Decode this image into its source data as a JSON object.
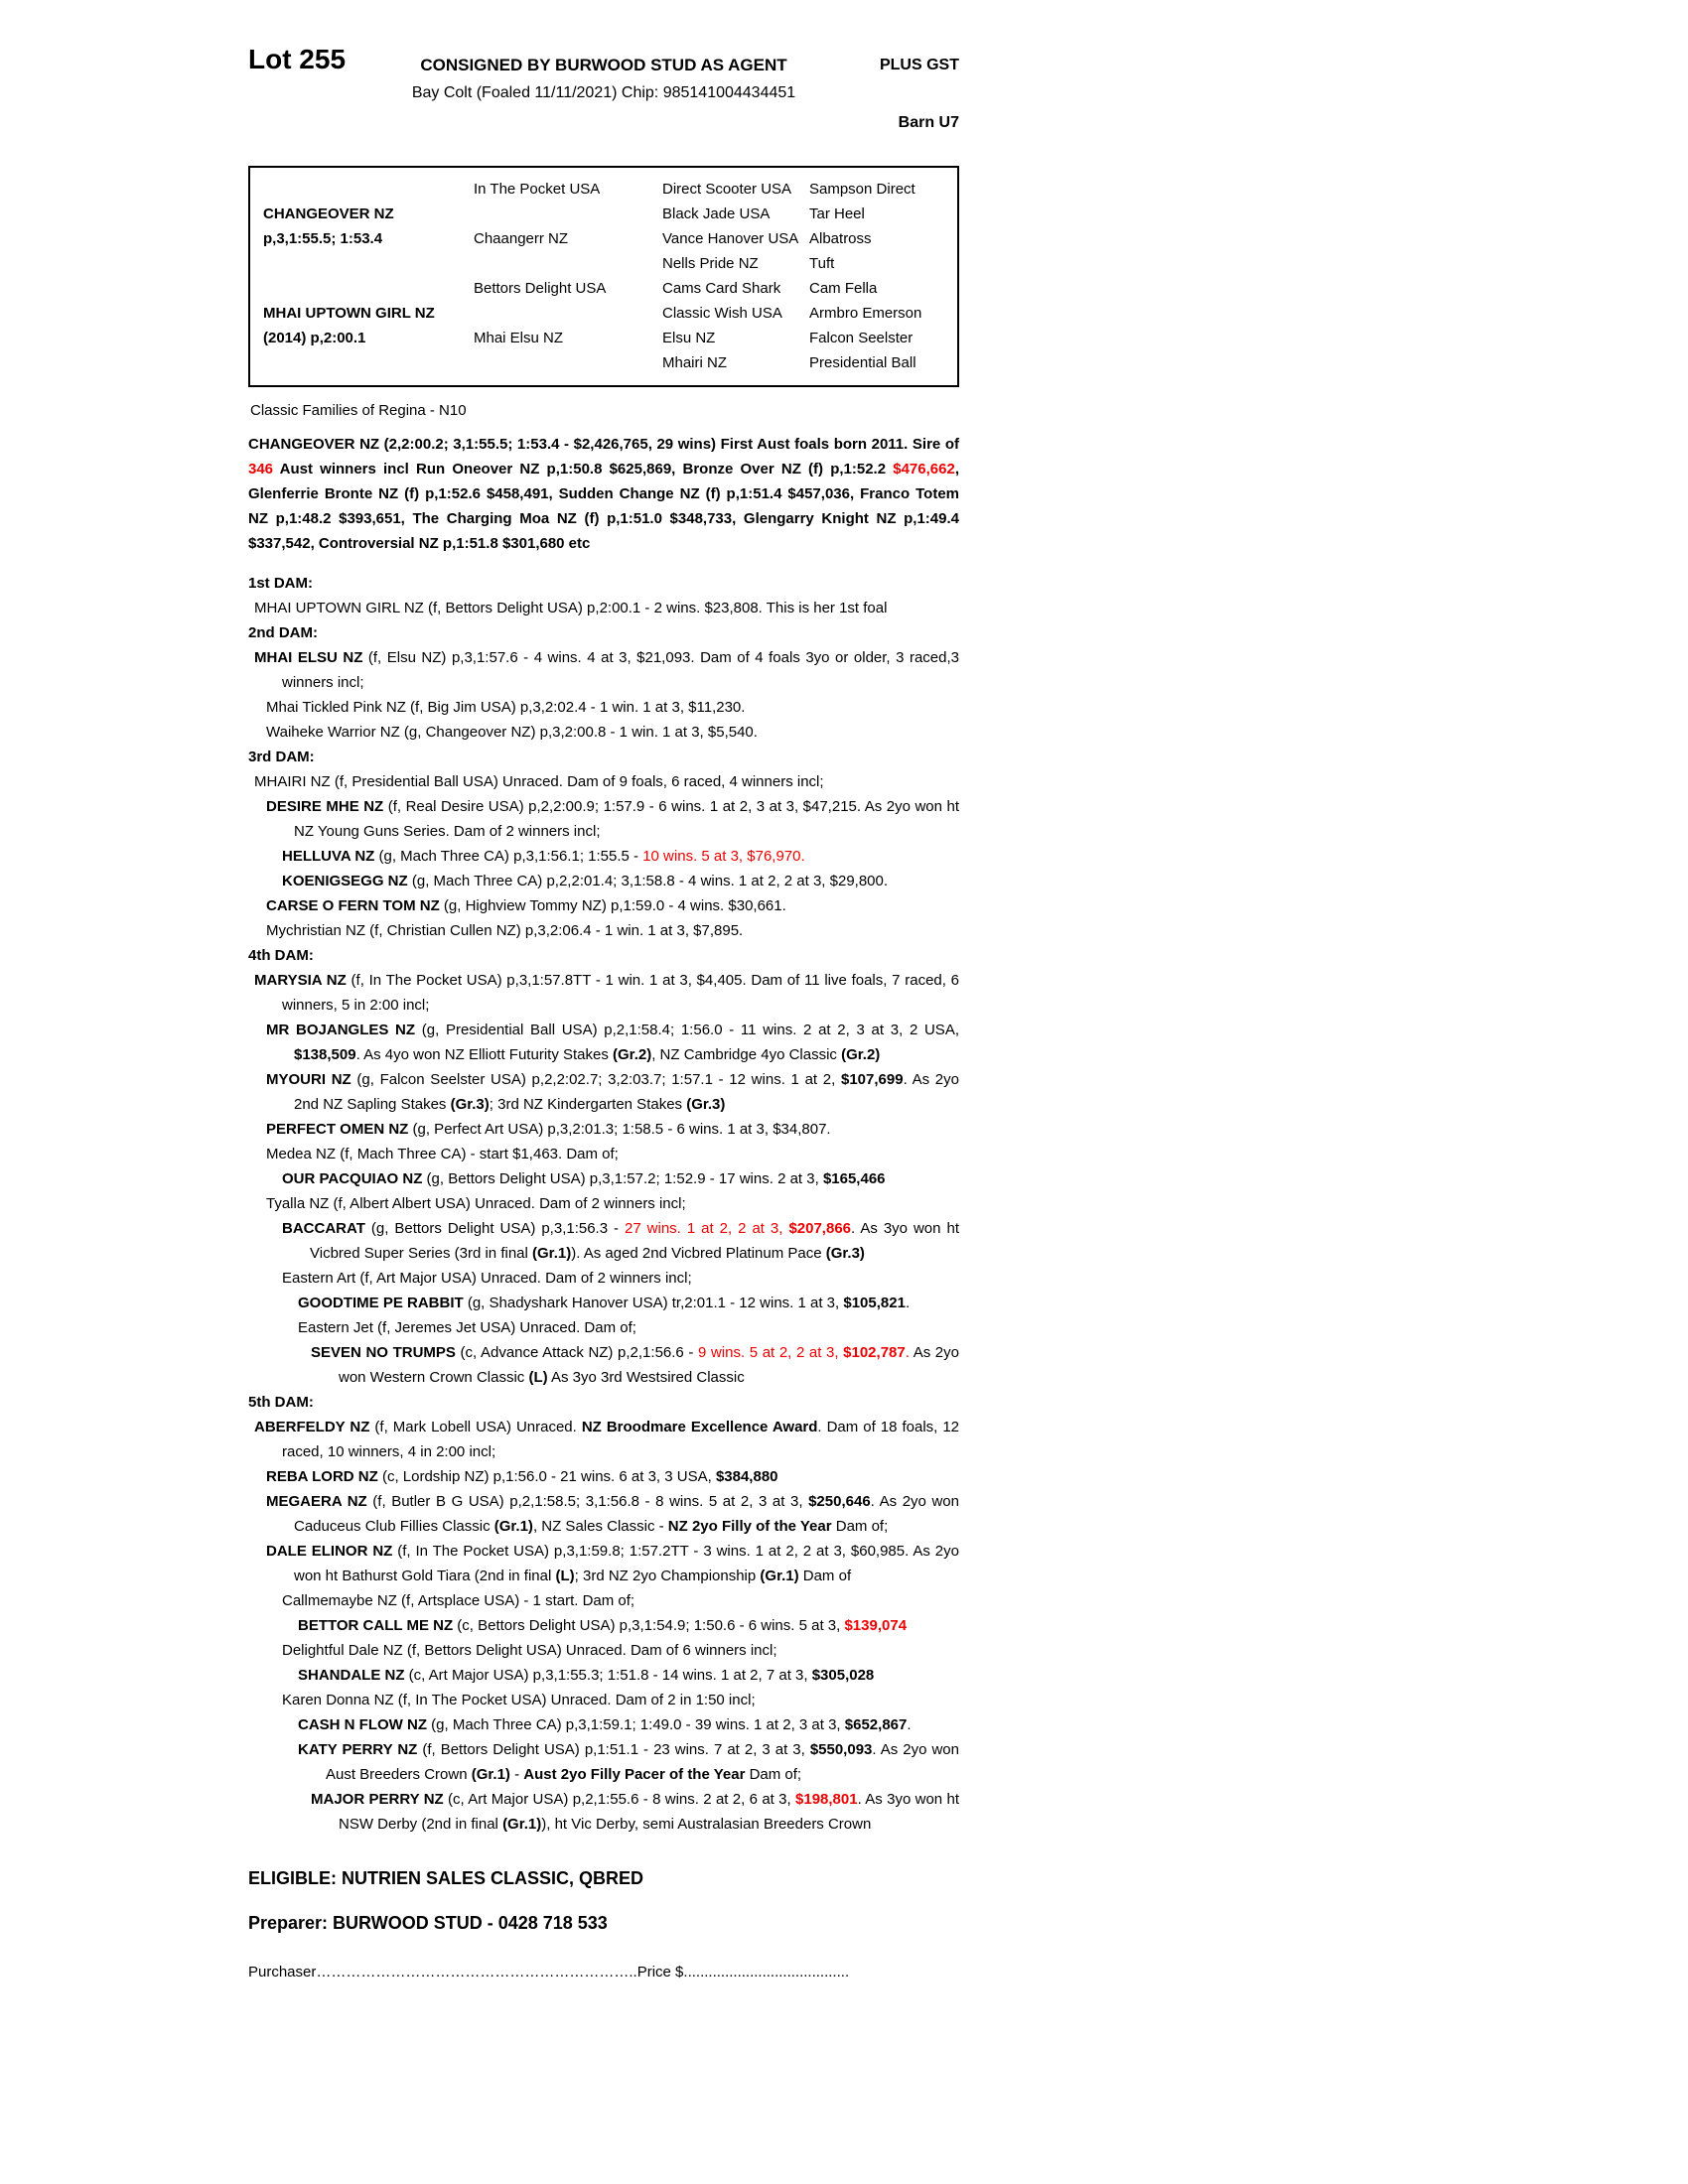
{
  "colors": {
    "red": "#ee0000"
  },
  "header": {
    "lot": "Lot 255",
    "consignor": "CONSIGNED BY BURWOOD STUD AS AGENT",
    "gst": "PLUS GST",
    "description": "Bay Colt (Foaled 11/11/2021) Chip: 985141004434451",
    "barn": "Barn U7"
  },
  "pedigree": {
    "col1": [
      {
        "name": "CHANGEOVER NZ",
        "record": "p,3,1:55.5; 1:53.4"
      },
      {
        "name": "MHAI UPTOWN GIRL NZ",
        "record": "(2014) p,2:00.1"
      }
    ],
    "col2": [
      "In The Pocket USA",
      "Chaangerr NZ",
      "Bettors Delight USA",
      "Mhai Elsu NZ"
    ],
    "col3": [
      "Direct Scooter USA",
      "Black Jade USA",
      "Vance Hanover USA",
      "Nells Pride NZ",
      "Cams Card Shark",
      "Classic Wish USA",
      "Elsu NZ",
      "Mhairi NZ"
    ],
    "col4": [
      "Sampson Direct",
      "Tar Heel",
      "Albatross",
      "Tuft",
      "Cam Fella",
      "Armbro Emerson",
      "Falcon Seelster",
      "Presidential Ball"
    ]
  },
  "family_line": "Classic Families of Regina - N10",
  "sire_paragraph": [
    {
      "t": "CHANGEOVER NZ (2,2:00.2; 3,1:55.5; 1:53.4 - $2,426,765, 29 wins) First Aust foals born 2011. Sire of "
    },
    {
      "t": "346",
      "r": true
    },
    {
      "t": " Aust winners incl Run Oneover NZ p,1:50.8 $625,869, Bronze Over NZ (f) p,1:52.2 "
    },
    {
      "t": "$476,662",
      "r": true
    },
    {
      "t": ", Glenferrie Bronte NZ (f) p,1:52.6 $458,491, Sudden Change NZ (f) p,1:51.4 $457,036, Franco Totem NZ p,1:48.2 $393,651, The Charging Moa NZ (f) p,1:51.0 $348,733, Glengarry Knight NZ p,1:49.4 $337,542, Controversial NZ p,1:51.8 $301,680 etc"
    }
  ],
  "dams": [
    {
      "heading": "1st DAM:",
      "entries": [
        {
          "level": 0,
          "segments": [
            {
              "t": "MHAI UPTOWN GIRL NZ (f, Bettors Delight USA) p,2:00.1 - 2 wins. $23,808. This is her 1st foal"
            }
          ]
        }
      ]
    },
    {
      "heading": "2nd DAM:",
      "entries": [
        {
          "level": 0,
          "segments": [
            {
              "t": "MHAI ELSU NZ",
              "b": true
            },
            {
              "t": " (f, Elsu NZ) p,3,1:57.6 - 4 wins. 4 at 3, $21,093. Dam of 4 foals 3yo or older, 3 raced,3 winners incl;"
            }
          ]
        },
        {
          "level": 1,
          "segments": [
            {
              "t": "Mhai Tickled Pink NZ (f, Big Jim USA) p,3,2:02.4 - 1 win. 1 at 3, $11,230."
            }
          ]
        },
        {
          "level": 1,
          "segments": [
            {
              "t": "Waiheke Warrior NZ (g, Changeover NZ) p,3,2:00.8 - 1 win. 1 at 3, $5,540."
            }
          ]
        }
      ]
    },
    {
      "heading": "3rd DAM:",
      "entries": [
        {
          "level": 0,
          "segments": [
            {
              "t": "MHAIRI NZ (f, Presidential Ball USA) Unraced. Dam of 9 foals, 6 raced, 4 winners incl;"
            }
          ]
        },
        {
          "level": 1,
          "segments": [
            {
              "t": "DESIRE MHE NZ",
              "b": true
            },
            {
              "t": " (f, Real Desire USA) p,2,2:00.9; 1:57.9 - 6 wins. 1 at 2, 3 at 3, $47,215. As 2yo won ht NZ Young Guns Series. Dam of 2 winners incl;"
            }
          ]
        },
        {
          "level": 2,
          "segments": [
            {
              "t": "HELLUVA NZ",
              "b": true
            },
            {
              "t": " (g, Mach Three CA) p,3,1:56.1; 1:55.5 - "
            },
            {
              "t": "10 wins. 5 at 3, $76,970.",
              "r": true
            }
          ]
        },
        {
          "level": 2,
          "segments": [
            {
              "t": "KOENIGSEGG NZ",
              "b": true
            },
            {
              "t": " (g, Mach Three CA) p,2,2:01.4; 3,1:58.8 - 4 wins. 1 at 2, 2 at 3, $29,800."
            }
          ]
        },
        {
          "level": 1,
          "segments": [
            {
              "t": "CARSE O FERN TOM NZ",
              "b": true
            },
            {
              "t": " (g, Highview Tommy NZ) p,1:59.0 - 4 wins. $30,661."
            }
          ]
        },
        {
          "level": 1,
          "segments": [
            {
              "t": "Mychristian NZ (f, Christian Cullen NZ) p,3,2:06.4 - 1 win. 1 at 3, $7,895."
            }
          ]
        }
      ]
    },
    {
      "heading": "4th DAM:",
      "entries": [
        {
          "level": 0,
          "segments": [
            {
              "t": "MARYSIA NZ",
              "b": true
            },
            {
              "t": " (f, In The Pocket USA) p,3,1:57.8TT - 1 win. 1 at 3, $4,405. Dam of 11 live foals, 7 raced, 6 winners, 5 in 2:00 incl;"
            }
          ]
        },
        {
          "level": 1,
          "segments": [
            {
              "t": "MR BOJANGLES NZ",
              "b": true
            },
            {
              "t": " (g, Presidential Ball USA) p,2,1:58.4; 1:56.0 - 11 wins. 2 at 2, 3 at 3, 2 USA, "
            },
            {
              "t": "$138,509",
              "b": true
            },
            {
              "t": ". As 4yo won NZ Elliott Futurity Stakes "
            },
            {
              "t": "(Gr.2)",
              "b": true
            },
            {
              "t": ", NZ Cambridge 4yo Classic "
            },
            {
              "t": "(Gr.2)",
              "b": true
            }
          ]
        },
        {
          "level": 1,
          "segments": [
            {
              "t": "MYOURI NZ",
              "b": true
            },
            {
              "t": " (g, Falcon Seelster USA) p,2,2:02.7; 3,2:03.7; 1:57.1 - 12 wins. 1 at 2, "
            },
            {
              "t": "$107,699",
              "b": true
            },
            {
              "t": ". As 2yo 2nd NZ Sapling Stakes "
            },
            {
              "t": "(Gr.3)",
              "b": true
            },
            {
              "t": "; 3rd NZ Kindergarten Stakes "
            },
            {
              "t": "(Gr.3)",
              "b": true
            }
          ]
        },
        {
          "level": 1,
          "segments": [
            {
              "t": "PERFECT OMEN NZ",
              "b": true
            },
            {
              "t": " (g, Perfect Art USA) p,3,2:01.3; 1:58.5 - 6 wins. 1 at 3, $34,807."
            }
          ]
        },
        {
          "level": 1,
          "segments": [
            {
              "t": "Medea NZ (f, Mach Three CA) - start $1,463. Dam of;"
            }
          ]
        },
        {
          "level": 2,
          "segments": [
            {
              "t": "OUR PACQUIAO NZ",
              "b": true
            },
            {
              "t": " (g, Bettors Delight USA) p,3,1:57.2; 1:52.9 - 17 wins. 2 at 3, "
            },
            {
              "t": "$165,466",
              "b": true
            }
          ]
        },
        {
          "level": 1,
          "segments": [
            {
              "t": "Tyalla NZ (f, Albert Albert USA) Unraced. Dam of 2 winners incl;"
            }
          ]
        },
        {
          "level": 2,
          "segments": [
            {
              "t": "BACCARAT",
              "b": true
            },
            {
              "t": " (g, Bettors Delight USA) p,3,1:56.3 - "
            },
            {
              "t": "27 wins. 1 at 2, 2 at 3, ",
              "r": true
            },
            {
              "t": "$207,866",
              "b": true,
              "r": true
            },
            {
              "t": ". As 3yo won ht Vicbred Super Series (3rd in final "
            },
            {
              "t": "(Gr.1)",
              "b": true
            },
            {
              "t": "). As aged 2nd Vicbred Platinum Pace "
            },
            {
              "t": "(Gr.3)",
              "b": true
            }
          ]
        },
        {
          "level": 2,
          "segments": [
            {
              "t": "Eastern Art (f, Art Major USA) Unraced. Dam of 2 winners incl;"
            }
          ]
        },
        {
          "level": 3,
          "segments": [
            {
              "t": "GOODTIME PE RABBIT",
              "b": true
            },
            {
              "t": " (g, Shadyshark Hanover USA) tr,2:01.1 - 12 wins. 1 at 3, "
            },
            {
              "t": "$105,821",
              "b": true
            },
            {
              "t": "."
            }
          ]
        },
        {
          "level": 3,
          "segments": [
            {
              "t": "Eastern Jet (f, Jeremes Jet USA) Unraced. Dam of;"
            }
          ]
        },
        {
          "level": 4,
          "segments": [
            {
              "t": "SEVEN NO TRUMPS",
              "b": true
            },
            {
              "t": " (c, Advance Attack NZ) p,2,1:56.6 - "
            },
            {
              "t": "9 wins. 5 at 2, 2 at 3, ",
              "r": true
            },
            {
              "t": "$102,787",
              "b": true,
              "r": true
            },
            {
              "t": ". ",
              "r": true
            },
            {
              "t": "As 2yo won Western Crown Classic "
            },
            {
              "t": "(L)",
              "b": true
            },
            {
              "t": " As 3yo 3rd Westsired Classic"
            }
          ]
        }
      ]
    },
    {
      "heading": "5th DAM:",
      "entries": [
        {
          "level": 0,
          "segments": [
            {
              "t": "ABERFELDY NZ",
              "b": true
            },
            {
              "t": " (f, Mark Lobell USA) Unraced. "
            },
            {
              "t": "NZ Broodmare Excellence Award",
              "b": true
            },
            {
              "t": ". Dam of 18 foals, 12 raced, 10 winners, 4 in 2:00 incl;"
            }
          ]
        },
        {
          "level": 1,
          "segments": [
            {
              "t": "REBA LORD NZ",
              "b": true
            },
            {
              "t": " (c, Lordship NZ) p,1:56.0 - 21 wins. 6 at 3, 3 USA, "
            },
            {
              "t": "$384,880",
              "b": true
            }
          ]
        },
        {
          "level": 1,
          "segments": [
            {
              "t": "MEGAERA NZ",
              "b": true
            },
            {
              "t": " (f, Butler B G USA) p,2,1:58.5; 3,1:56.8 - 8 wins. 5 at 2, 3 at 3, "
            },
            {
              "t": "$250,646",
              "b": true
            },
            {
              "t": ". As 2yo won Caduceus Club Fillies Classic "
            },
            {
              "t": "(Gr.1)",
              "b": true
            },
            {
              "t": ", NZ Sales Classic - "
            },
            {
              "t": "NZ 2yo Filly of the Year",
              "b": true
            },
            {
              "t": " Dam of;"
            }
          ]
        },
        {
          "level": 1,
          "segments": [
            {
              "t": "DALE ELINOR NZ",
              "b": true
            },
            {
              "t": " (f, In The Pocket USA) p,3,1:59.8; 1:57.2TT - 3 wins. 1 at 2, 2 at 3, $60,985. As 2yo won ht Bathurst Gold Tiara (2nd in final "
            },
            {
              "t": "(L)",
              "b": true
            },
            {
              "t": "; 3rd NZ 2yo Championship "
            },
            {
              "t": "(Gr.1)",
              "b": true
            },
            {
              "t": " Dam of"
            }
          ]
        },
        {
          "level": 2,
          "segments": [
            {
              "t": "Callmemaybe NZ (f, Artsplace USA) - 1 start. Dam of;"
            }
          ]
        },
        {
          "level": 3,
          "segments": [
            {
              "t": "BETTOR CALL ME NZ",
              "b": true
            },
            {
              "t": " (c, Bettors Delight USA) p,3,1:54.9; 1:50.6 - 6 wins. 5 at 3, "
            },
            {
              "t": "$139,074",
              "b": true,
              "r": true
            }
          ]
        },
        {
          "level": 2,
          "segments": [
            {
              "t": "Delightful Dale NZ (f, Bettors Delight USA) Unraced. Dam of 6 winners incl;"
            }
          ]
        },
        {
          "level": 3,
          "segments": [
            {
              "t": "SHANDALE NZ",
              "b": true
            },
            {
              "t": " (c, Art Major USA) p,3,1:55.3; 1:51.8 - 14 wins. 1 at 2, 7 at 3, "
            },
            {
              "t": "$305,028",
              "b": true
            }
          ]
        },
        {
          "level": 2,
          "segments": [
            {
              "t": "Karen Donna NZ (f, In The Pocket USA) Unraced. Dam of 2 in 1:50 incl;"
            }
          ]
        },
        {
          "level": 3,
          "segments": [
            {
              "t": "CASH N FLOW NZ",
              "b": true
            },
            {
              "t": " (g, Mach Three CA) p,3,1:59.1; 1:49.0 - 39 wins. 1 at 2, 3 at 3, "
            },
            {
              "t": "$652,867",
              "b": true
            },
            {
              "t": "."
            }
          ]
        },
        {
          "level": 3,
          "segments": [
            {
              "t": "KATY PERRY NZ",
              "b": true
            },
            {
              "t": " (f, Bettors Delight USA) p,1:51.1 - 23 wins. 7 at 2, 3 at 3, "
            },
            {
              "t": "$550,093",
              "b": true
            },
            {
              "t": ". As 2yo won Aust Breeders Crown "
            },
            {
              "t": "(Gr.1)",
              "b": true
            },
            {
              "t": " - "
            },
            {
              "t": "Aust 2yo Filly Pacer of the Year",
              "b": true
            },
            {
              "t": " Dam of;"
            }
          ]
        },
        {
          "level": 4,
          "segments": [
            {
              "t": "MAJOR PERRY NZ",
              "b": true
            },
            {
              "t": " (c, Art Major USA) p,2,1:55.6 - 8 wins. 2 at 2, 6 at 3, "
            },
            {
              "t": "$198,801",
              "b": true,
              "r": true
            },
            {
              "t": ". As 3yo won ht NSW Derby (2nd in final "
            },
            {
              "t": "(Gr.1)",
              "b": true
            },
            {
              "t": "), ht Vic Derby, semi Australasian Breeders Crown"
            }
          ]
        }
      ]
    }
  ],
  "footer": {
    "eligible": "ELIGIBLE: NUTRIEN SALES CLASSIC, QBRED",
    "preparer": "Preparer: BURWOOD STUD - 0428 718 533",
    "purchaser_label": "Purchaser",
    "purchaser_dots": "………………………………………………………..",
    "price_label": "Price $",
    "price_dots": "........................................"
  }
}
